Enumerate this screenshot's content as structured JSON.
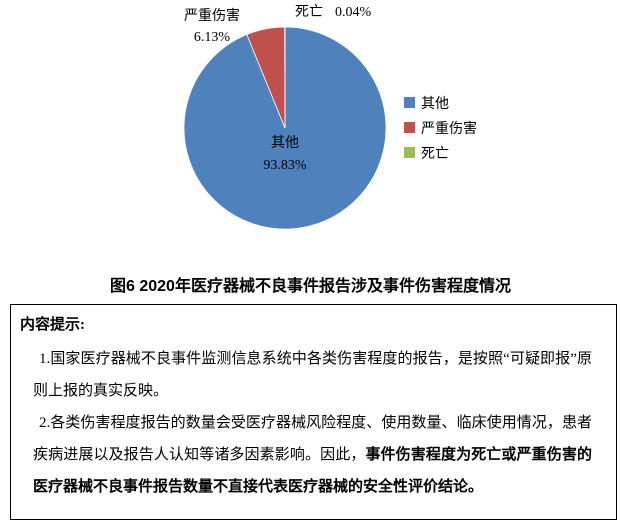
{
  "chart_data": {
    "type": "pie",
    "title": "图6 2020年医疗器械不良事件报告涉及事件伤害程度情况",
    "slices": [
      {
        "label": "其他",
        "value": 93.83,
        "pct_text": "93.83%",
        "color": "#4F81BD"
      },
      {
        "label": "严重伤害",
        "value": 6.13,
        "pct_text": "6.13%",
        "color": "#C0504D"
      },
      {
        "label": "死亡",
        "value": 0.04,
        "pct_text": "0.04%",
        "color": "#9BBB59"
      }
    ],
    "legend_position": "right",
    "start_angle_deg": -90,
    "direction": "clockwise",
    "slice_border_color": "#ffffff"
  },
  "tips": {
    "heading": "内容提示:",
    "item1": "1.国家医疗器械不良事件监测信息系统中各类伤害程度的报告，是按照“可疑即报”原则上报的真实反映。",
    "item2_normal": "2.各类伤害程度报告的数量会受医疗器械风险程度、使用数量、临床使用情况，患者疾病进展以及报告人认知等诸多因素影响。因此，",
    "item2_bold": "事件伤害程度为死亡或严重伤害的医疗器械不良事件报告数量不直接代表医疗器械的安全性评价结论。"
  }
}
